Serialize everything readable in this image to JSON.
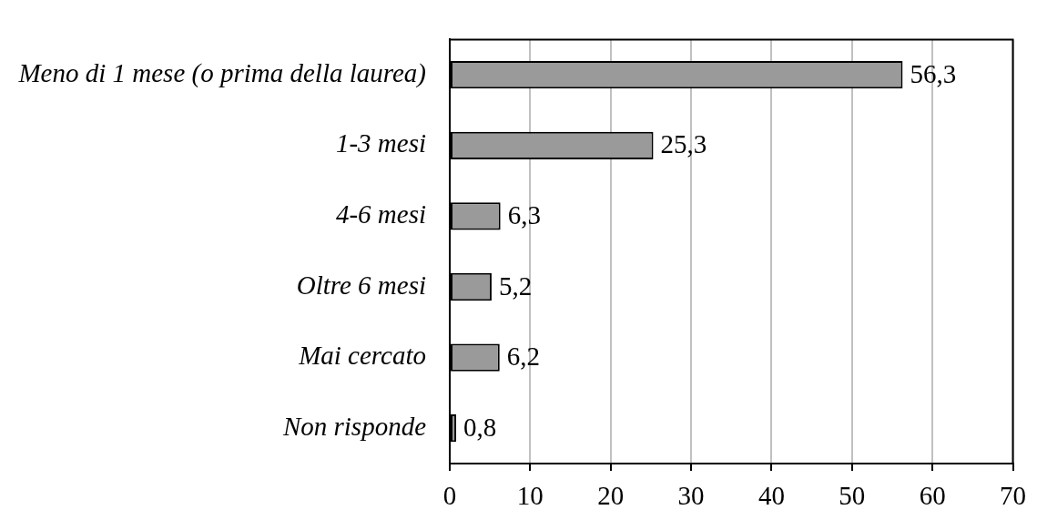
{
  "chart_data": {
    "type": "bar",
    "orientation": "horizontal",
    "categories": [
      "Meno di 1 mese (o prima della laurea)",
      "1-3 mesi",
      "4-6 mesi",
      "Oltre 6 mesi",
      "Mai cercato",
      "Non risponde"
    ],
    "values": [
      56.3,
      25.3,
      6.3,
      5.2,
      6.2,
      0.8
    ],
    "value_labels": [
      "56,3",
      "25,3",
      "6,3",
      "5,2",
      "6,2",
      "0,8"
    ],
    "color": "#9a9a9a",
    "xlim": [
      0,
      70
    ],
    "xticks": [
      0,
      10,
      20,
      30,
      40,
      50,
      60,
      70
    ],
    "grid": "x"
  }
}
